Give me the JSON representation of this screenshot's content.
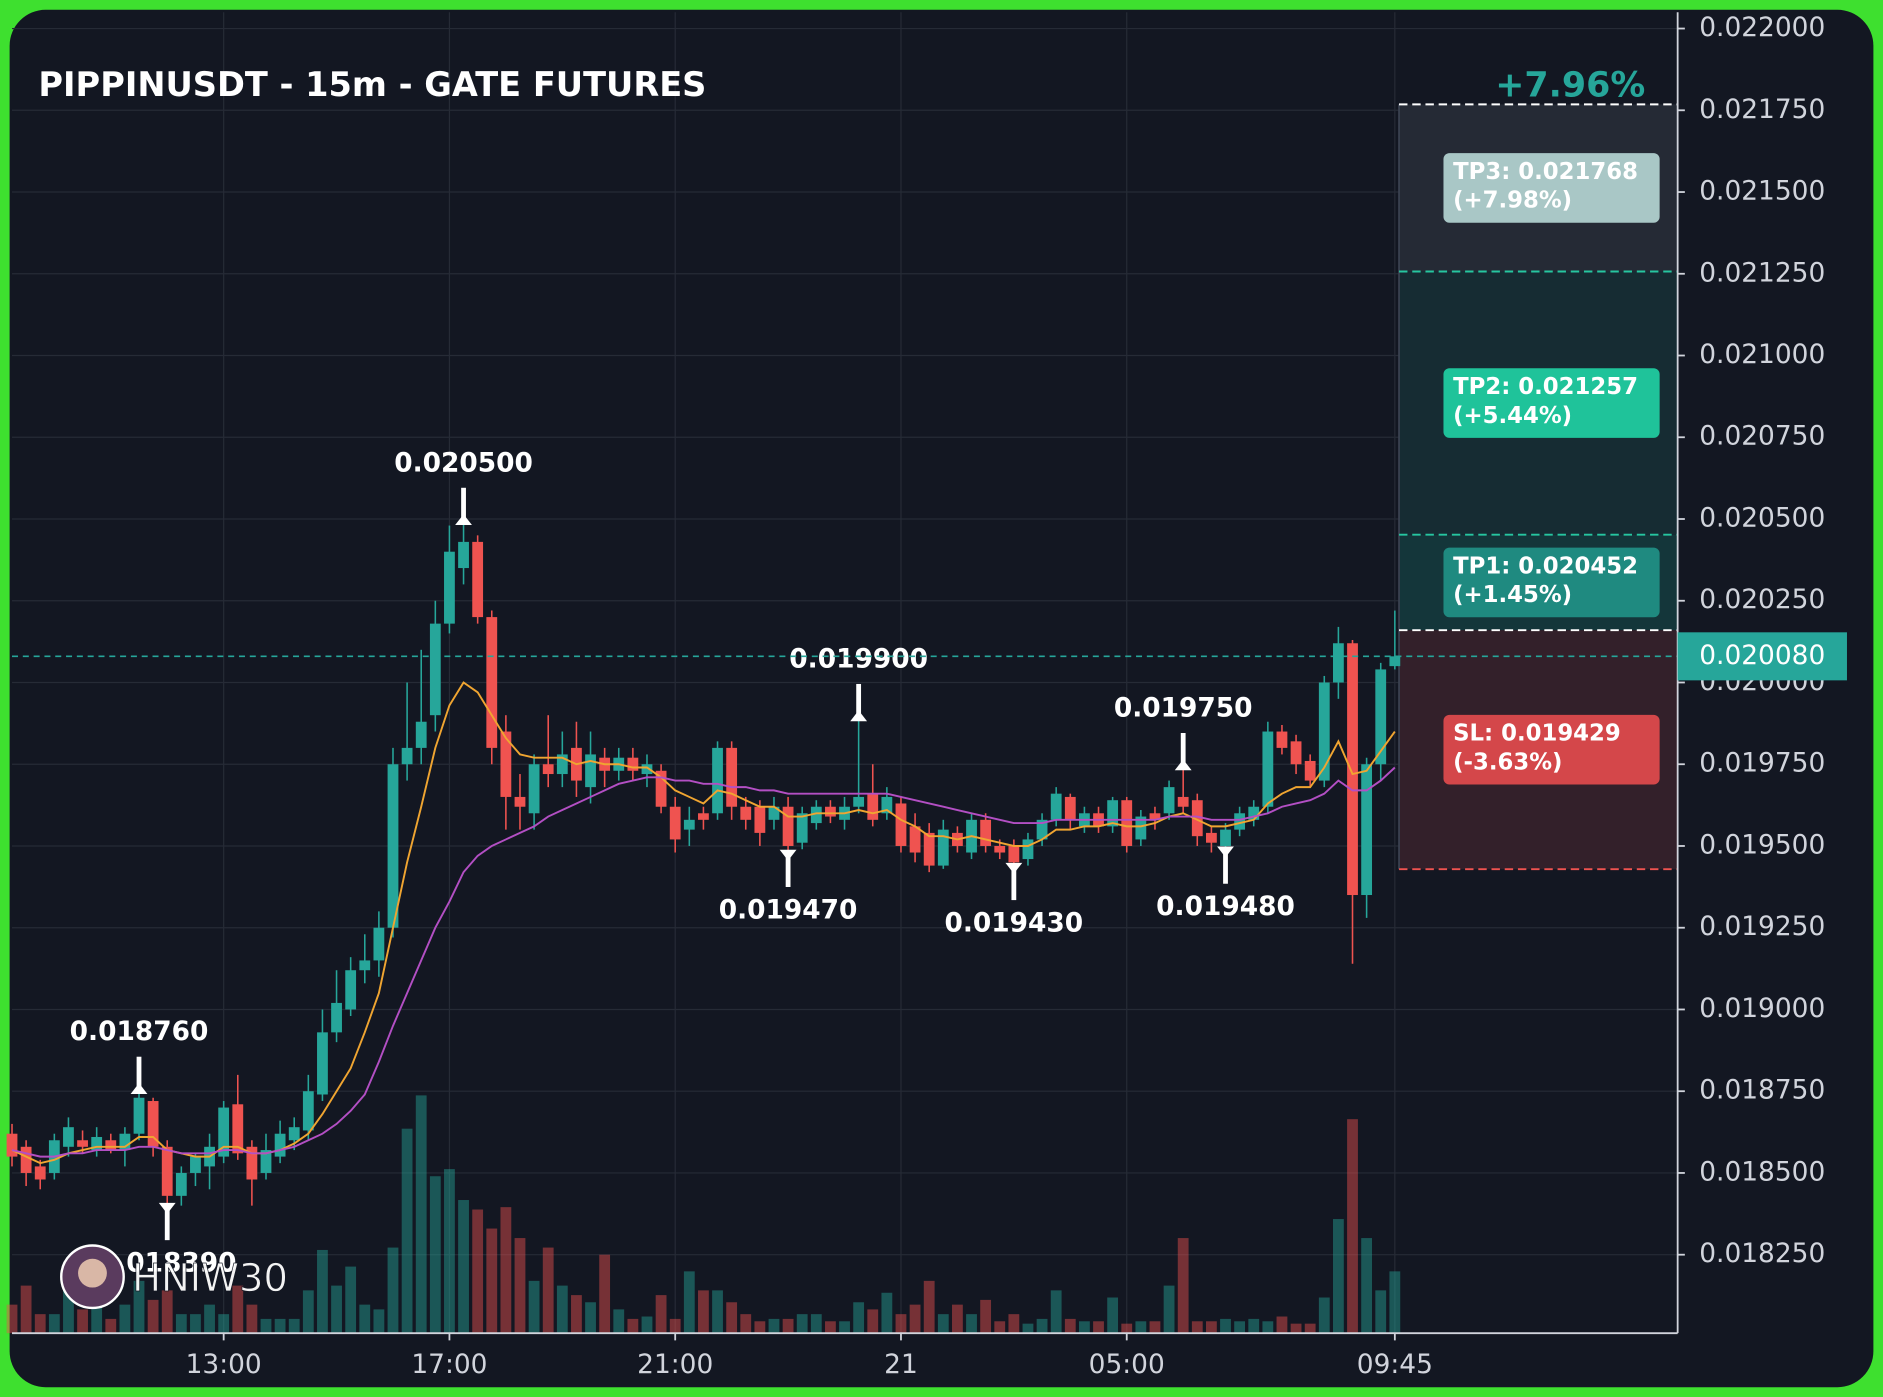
{
  "chart_data": {
    "type": "candlestick",
    "title": "PIPPINUSDT - 15m - GATE FUTURES",
    "watermark": "HNIW30",
    "header_change": "+7.96%",
    "up_color": "#26a69a",
    "down_color": "#ef5350",
    "categories": [
      null,
      null,
      null,
      null,
      null,
      null,
      null,
      null,
      null,
      null,
      null,
      null,
      null,
      null,
      null,
      "13:00",
      null,
      null,
      null,
      null,
      null,
      null,
      null,
      null,
      null,
      null,
      null,
      null,
      null,
      null,
      null,
      "17:00",
      null,
      null,
      null,
      null,
      null,
      null,
      null,
      null,
      null,
      null,
      null,
      null,
      null,
      null,
      null,
      "21:00",
      null,
      null,
      null,
      null,
      null,
      null,
      null,
      null,
      null,
      null,
      null,
      null,
      null,
      null,
      null,
      "21",
      null,
      null,
      null,
      null,
      null,
      null,
      null,
      null,
      null,
      null,
      null,
      null,
      null,
      null,
      null,
      "05:00",
      null,
      null,
      null,
      null,
      null,
      null,
      null,
      null,
      null,
      null,
      null,
      null,
      null,
      null,
      null,
      null,
      null,
      null,
      "09:45"
    ],
    "open": [
      0.01862,
      0.01858,
      0.01852,
      0.0185,
      0.01858,
      0.0186,
      0.01857,
      0.0186,
      0.01857,
      0.01862,
      0.01872,
      0.01858,
      0.01843,
      0.0185,
      0.01852,
      0.01855,
      0.01871,
      0.01858,
      0.0185,
      0.01855,
      0.0186,
      0.01863,
      0.01874,
      0.01893,
      0.019,
      0.01912,
      0.01915,
      0.01925,
      0.01975,
      0.0198,
      0.0199,
      0.02018,
      0.02035,
      0.02043,
      0.0202,
      0.01985,
      0.01965,
      0.0196,
      0.01975,
      0.01972,
      0.0198,
      0.01968,
      0.01977,
      0.01973,
      0.01977,
      0.01972,
      0.01973,
      0.01962,
      0.01955,
      0.0196,
      0.0196,
      0.0198,
      0.01962,
      0.01962,
      0.01958,
      0.01962,
      0.01951,
      0.01957,
      0.01962,
      0.01958,
      0.01962,
      0.01966,
      0.0196,
      0.01963,
      0.01956,
      0.01954,
      0.01944,
      0.01954,
      0.01948,
      0.01958,
      0.0195,
      0.0195,
      0.01946,
      0.01952,
      0.01958,
      0.01965,
      0.01956,
      0.0196,
      0.01956,
      0.01964,
      0.01952,
      0.0196,
      0.0196,
      0.01965,
      0.01964,
      0.01954,
      0.0195,
      0.01955,
      0.01958,
      0.01962,
      0.01985,
      0.01982,
      0.01976,
      0.0197,
      0.02,
      0.02012,
      0.01935,
      0.01975,
      0.02005
    ],
    "high": [
      0.01865,
      0.0186,
      0.01854,
      0.01862,
      0.01867,
      0.01863,
      0.01864,
      0.01862,
      0.01864,
      0.01876,
      0.01873,
      0.0186,
      0.01852,
      0.01856,
      0.01862,
      0.01872,
      0.0188,
      0.0186,
      0.01862,
      0.01866,
      0.01867,
      0.0188,
      0.019,
      0.01912,
      0.01916,
      0.01923,
      0.0193,
      0.0198,
      0.02,
      0.0201,
      0.02025,
      0.02048,
      0.0205,
      0.02045,
      0.02022,
      0.0199,
      0.01972,
      0.01978,
      0.0199,
      0.01985,
      0.01988,
      0.01985,
      0.0198,
      0.0198,
      0.0198,
      0.01978,
      0.01975,
      0.01965,
      0.01962,
      0.01962,
      0.01982,
      0.01982,
      0.01965,
      0.01964,
      0.01965,
      0.01965,
      0.01962,
      0.01964,
      0.01964,
      0.01965,
      0.0199,
      0.01975,
      0.01968,
      0.01965,
      0.0196,
      0.01957,
      0.01958,
      0.01956,
      0.0196,
      0.0196,
      0.01952,
      0.01952,
      0.01954,
      0.0196,
      0.01968,
      0.01966,
      0.01962,
      0.01962,
      0.01965,
      0.01965,
      0.01961,
      0.01962,
      0.0197,
      0.01975,
      0.01966,
      0.01956,
      0.01957,
      0.01962,
      0.01964,
      0.01988,
      0.01987,
      0.01984,
      0.01978,
      0.02002,
      0.02017,
      0.02013,
      0.01977,
      0.02006,
      0.02022
    ],
    "low": [
      0.01852,
      0.01846,
      0.01845,
      0.01848,
      0.01855,
      0.01856,
      0.01855,
      0.01856,
      0.01852,
      0.0186,
      0.01855,
      0.01839,
      0.0184,
      0.01846,
      0.01845,
      0.01853,
      0.01854,
      0.0184,
      0.01848,
      0.01853,
      0.01857,
      0.0186,
      0.01872,
      0.0189,
      0.01898,
      0.01908,
      0.0191,
      0.01922,
      0.0197,
      0.01975,
      0.01985,
      0.02015,
      0.0203,
      0.02018,
      0.01975,
      0.01955,
      0.01955,
      0.01955,
      0.01968,
      0.01968,
      0.01965,
      0.01963,
      0.01968,
      0.0197,
      0.0197,
      0.01968,
      0.0196,
      0.01948,
      0.0195,
      0.01955,
      0.01958,
      0.01958,
      0.01955,
      0.0195,
      0.01955,
      0.01947,
      0.01949,
      0.01955,
      0.01957,
      0.01955,
      0.0196,
      0.01956,
      0.01958,
      0.01948,
      0.01945,
      0.01942,
      0.01943,
      0.01948,
      0.01946,
      0.01948,
      0.01946,
      0.01943,
      0.01944,
      0.0195,
      0.01956,
      0.01955,
      0.01954,
      0.01954,
      0.01954,
      0.01948,
      0.0195,
      0.01955,
      0.01958,
      0.0196,
      0.0195,
      0.01948,
      0.01948,
      0.01953,
      0.01956,
      0.0196,
      0.01978,
      0.01972,
      0.01968,
      0.01968,
      0.01995,
      0.01914,
      0.01928,
      0.0197,
      0.02004
    ],
    "close": [
      0.01855,
      0.0185,
      0.01848,
      0.0186,
      0.01864,
      0.01858,
      0.01861,
      0.01857,
      0.01862,
      0.01873,
      0.01858,
      0.01843,
      0.0185,
      0.01855,
      0.01858,
      0.0187,
      0.01856,
      0.01848,
      0.01857,
      0.01862,
      0.01864,
      0.01875,
      0.01893,
      0.01902,
      0.01912,
      0.01915,
      0.01925,
      0.01975,
      0.0198,
      0.01988,
      0.02018,
      0.0204,
      0.02043,
      0.0202,
      0.0198,
      0.01965,
      0.01962,
      0.01975,
      0.01972,
      0.01978,
      0.0197,
      0.01978,
      0.01973,
      0.01977,
      0.01973,
      0.01975,
      0.01962,
      0.01952,
      0.01958,
      0.01958,
      0.0198,
      0.01962,
      0.01958,
      0.01954,
      0.01962,
      0.0195,
      0.0196,
      0.01962,
      0.01959,
      0.01962,
      0.01965,
      0.01958,
      0.01965,
      0.0195,
      0.01948,
      0.01944,
      0.01955,
      0.0195,
      0.01958,
      0.0195,
      0.01948,
      0.01945,
      0.01952,
      0.01958,
      0.01966,
      0.01958,
      0.0196,
      0.01956,
      0.01964,
      0.0195,
      0.01959,
      0.01958,
      0.01968,
      0.01962,
      0.01953,
      0.01951,
      0.01955,
      0.0196,
      0.01962,
      0.01985,
      0.0198,
      0.01975,
      0.0197,
      0.02,
      0.02012,
      0.01935,
      0.01975,
      0.02004,
      0.02008
    ],
    "volume": [
      12,
      20,
      8,
      8,
      18,
      10,
      15,
      6,
      12,
      22,
      14,
      18,
      8,
      8,
      12,
      8,
      20,
      12,
      6,
      6,
      6,
      18,
      35,
      20,
      28,
      12,
      10,
      36,
      86,
      100,
      66,
      69,
      56,
      52,
      44,
      53,
      40,
      22,
      36,
      20,
      16,
      13,
      33,
      10,
      6,
      7,
      16,
      6,
      26,
      18,
      18,
      13,
      8,
      5,
      6,
      6,
      8,
      8,
      5,
      5,
      13,
      10,
      17,
      8,
      12,
      22,
      8,
      12,
      8,
      14,
      5,
      8,
      4,
      6,
      18,
      6,
      5,
      5,
      15,
      4,
      5,
      5,
      20,
      40,
      5,
      5,
      6,
      5,
      6,
      5,
      7,
      4,
      4,
      15,
      48,
      90,
      40,
      18,
      26
    ],
    "ma": [
      {
        "color": "#f0a531",
        "values": [
          0.01857,
          0.01855,
          0.01853,
          0.01854,
          0.01856,
          0.01857,
          0.01858,
          0.01858,
          0.01858,
          0.01861,
          0.01861,
          0.01857,
          0.01856,
          0.01855,
          0.01855,
          0.01858,
          0.01858,
          0.01856,
          0.01856,
          0.01857,
          0.01859,
          0.01862,
          0.01868,
          0.01875,
          0.01882,
          0.01893,
          0.01905,
          0.01925,
          0.01945,
          0.01962,
          0.0198,
          0.01993,
          0.02,
          0.01997,
          0.0199,
          0.01983,
          0.01978,
          0.01977,
          0.01977,
          0.01977,
          0.01975,
          0.01976,
          0.01975,
          0.01975,
          0.01974,
          0.01974,
          0.01971,
          0.01967,
          0.01965,
          0.01963,
          0.01967,
          0.01966,
          0.01964,
          0.01962,
          0.01962,
          0.01959,
          0.01959,
          0.0196,
          0.0196,
          0.0196,
          0.01961,
          0.0196,
          0.01961,
          0.01958,
          0.01956,
          0.01953,
          0.01953,
          0.01952,
          0.01953,
          0.01952,
          0.01951,
          0.0195,
          0.0195,
          0.01952,
          0.01955,
          0.01955,
          0.01956,
          0.01956,
          0.01957,
          0.01956,
          0.01956,
          0.01957,
          0.01959,
          0.0196,
          0.01958,
          0.01956,
          0.01956,
          0.01957,
          0.01958,
          0.01963,
          0.01966,
          0.01968,
          0.01968,
          0.01974,
          0.01982,
          0.01972,
          0.01973,
          0.01979,
          0.01985
        ]
      },
      {
        "color": "#b34fc4",
        "values": [
          0.01857,
          0.01856,
          0.01855,
          0.01855,
          0.01856,
          0.01856,
          0.01857,
          0.01857,
          0.01857,
          0.01858,
          0.01858,
          0.01857,
          0.01856,
          0.01856,
          0.01856,
          0.01857,
          0.01857,
          0.01856,
          0.01856,
          0.01857,
          0.01858,
          0.0186,
          0.01862,
          0.01865,
          0.01869,
          0.01874,
          0.01884,
          0.01895,
          0.01905,
          0.01915,
          0.01925,
          0.01933,
          0.01942,
          0.01947,
          0.0195,
          0.01952,
          0.01954,
          0.01956,
          0.01959,
          0.01961,
          0.01963,
          0.01965,
          0.01967,
          0.01969,
          0.0197,
          0.01971,
          0.01971,
          0.0197,
          0.0197,
          0.01969,
          0.01969,
          0.01968,
          0.01968,
          0.01967,
          0.01967,
          0.01966,
          0.01966,
          0.01966,
          0.01966,
          0.01966,
          0.01966,
          0.01966,
          0.01966,
          0.01965,
          0.01964,
          0.01963,
          0.01962,
          0.01961,
          0.0196,
          0.01959,
          0.01958,
          0.01957,
          0.01957,
          0.01957,
          0.01958,
          0.01958,
          0.01958,
          0.01958,
          0.01958,
          0.01958,
          0.01958,
          0.01958,
          0.01959,
          0.01959,
          0.01959,
          0.01958,
          0.01958,
          0.01958,
          0.01959,
          0.0196,
          0.01962,
          0.01963,
          0.01964,
          0.01966,
          0.0197,
          0.01967,
          0.01967,
          0.0197,
          0.01974
        ]
      }
    ],
    "annotations": [
      {
        "candle": 9,
        "kind": "high",
        "value": 0.01876,
        "label": "0.018760"
      },
      {
        "candle": 11,
        "kind": "low",
        "value": 0.01839,
        "label": "0.018390"
      },
      {
        "candle": 32,
        "kind": "high",
        "value": 0.0205,
        "label": "0.020500"
      },
      {
        "candle": 55,
        "kind": "low",
        "value": 0.01947,
        "label": "0.019470"
      },
      {
        "candle": 60,
        "kind": "high",
        "value": 0.0199,
        "label": "0.019900"
      },
      {
        "candle": 71,
        "kind": "low",
        "value": 0.01943,
        "label": "0.019430"
      },
      {
        "candle": 83,
        "kind": "high",
        "value": 0.01975,
        "label": "0.019750"
      },
      {
        "candle": 86,
        "kind": "low",
        "value": 0.01948,
        "label": "0.019480"
      }
    ],
    "entry": 0.02016,
    "levels": [
      {
        "side": "tp",
        "value": 0.020452,
        "label": "TP1: 0.020452",
        "change": "(+1.45%)",
        "box_color": "#1f8a80",
        "zone_color": "#14363a",
        "line_color": "#26c6a0"
      },
      {
        "side": "tp",
        "value": 0.021257,
        "label": "TP2: 0.021257",
        "change": "(+5.44%)",
        "box_color": "#1fc39a",
        "zone_color": "#162c33",
        "line_color": "#26c6a0"
      },
      {
        "side": "tp",
        "value": 0.021768,
        "label": "TP3: 0.021768",
        "change": "(+7.98%)",
        "box_color": "#a9c7c6",
        "zone_color": "#252a35",
        "line_color": "#ffffff"
      },
      {
        "side": "sl",
        "value": 0.019429,
        "label": "SL: 0.019429",
        "change": "(-3.63%)",
        "box_color": "#d4474a",
        "zone_color": "#33202a",
        "line_color": "#ef5350"
      }
    ],
    "last_price": {
      "value": 0.02008,
      "label": "0.020080",
      "color": "#26a69a"
    },
    "ylim": [
      0.01801,
      0.02205
    ],
    "yticks": [
      {
        "value": 0.022,
        "label": "0.022000"
      },
      {
        "value": 0.02175,
        "label": "0.021750"
      },
      {
        "value": 0.0215,
        "label": "0.021500"
      },
      {
        "value": 0.02125,
        "label": "0.021250"
      },
      {
        "value": 0.021,
        "label": "0.021000"
      },
      {
        "value": 0.02075,
        "label": "0.020750"
      },
      {
        "value": 0.0205,
        "label": "0.020500"
      },
      {
        "value": 0.02025,
        "label": "0.020250"
      },
      {
        "value": 0.02,
        "label": "0.020000"
      },
      {
        "value": 0.01975,
        "label": "0.019750"
      },
      {
        "value": 0.0195,
        "label": "0.019500"
      },
      {
        "value": 0.01925,
        "label": "0.019250"
      },
      {
        "value": 0.019,
        "label": "0.019000"
      },
      {
        "value": 0.01875,
        "label": "0.018750"
      },
      {
        "value": 0.0185,
        "label": "0.018500"
      },
      {
        "value": 0.01825,
        "label": "0.018250"
      }
    ],
    "grid": true
  }
}
